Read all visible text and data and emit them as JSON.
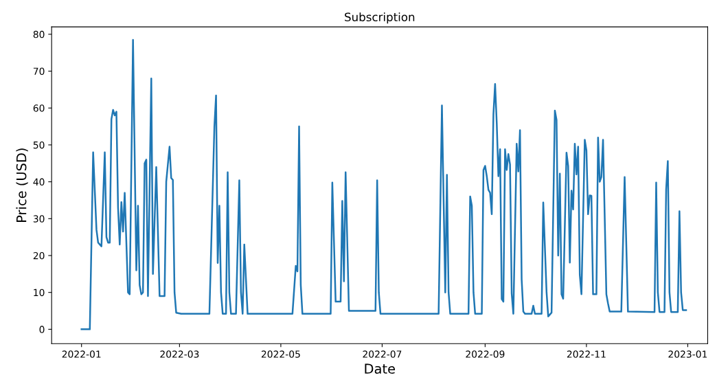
{
  "chart_data": {
    "type": "line",
    "title": "Subscription",
    "xlabel": "Date",
    "ylabel": "Price (USD)",
    "x": [
      "2022-01-01",
      "2022-01-06",
      "2022-01-08",
      "2022-01-10",
      "2022-01-11",
      "2022-01-13",
      "2022-01-15",
      "2022-01-16",
      "2022-01-17",
      "2022-01-18",
      "2022-01-19",
      "2022-01-20",
      "2022-01-21",
      "2022-01-22",
      "2022-01-23",
      "2022-01-24",
      "2022-01-25",
      "2022-01-26",
      "2022-01-27",
      "2022-01-29",
      "2022-01-30",
      "2022-02-01",
      "2022-02-03",
      "2022-02-04",
      "2022-02-05",
      "2022-02-06",
      "2022-02-07",
      "2022-02-08",
      "2022-02-09",
      "2022-02-10",
      "2022-02-12",
      "2022-02-13",
      "2022-02-15",
      "2022-02-17",
      "2022-02-20",
      "2022-02-21",
      "2022-02-23",
      "2022-02-24",
      "2022-02-25",
      "2022-02-26",
      "2022-02-27",
      "2022-03-02",
      "2022-03-19",
      "2022-03-22",
      "2022-03-23",
      "2022-03-24",
      "2022-03-25",
      "2022-03-26",
      "2022-03-27",
      "2022-03-29",
      "2022-03-30",
      "2022-03-31",
      "2022-04-01",
      "2022-04-04",
      "2022-04-06",
      "2022-04-07",
      "2022-04-08",
      "2022-04-09",
      "2022-04-11",
      "2022-05-08",
      "2022-05-10",
      "2022-05-11",
      "2022-05-12",
      "2022-05-13",
      "2022-05-14",
      "2022-05-31",
      "2022-06-01",
      "2022-06-03",
      "2022-06-06",
      "2022-06-07",
      "2022-06-08",
      "2022-06-09",
      "2022-06-11",
      "2022-06-27",
      "2022-06-28",
      "2022-06-29",
      "2022-06-30",
      "2022-08-04",
      "2022-08-06",
      "2022-08-08",
      "2022-08-09",
      "2022-08-10",
      "2022-08-11",
      "2022-08-22",
      "2022-08-23",
      "2022-08-24",
      "2022-08-25",
      "2022-08-26",
      "2022-08-30",
      "2022-08-31",
      "2022-09-01",
      "2022-09-02",
      "2022-09-03",
      "2022-09-04",
      "2022-09-05",
      "2022-09-06",
      "2022-09-07",
      "2022-09-08",
      "2022-09-09",
      "2022-09-10",
      "2022-09-11",
      "2022-09-12",
      "2022-09-13",
      "2022-09-14",
      "2022-09-15",
      "2022-09-16",
      "2022-09-17",
      "2022-09-18",
      "2022-09-20",
      "2022-09-21",
      "2022-09-22",
      "2022-09-23",
      "2022-09-24",
      "2022-09-25",
      "2022-09-29",
      "2022-09-30",
      "2022-10-01",
      "2022-10-05",
      "2022-10-06",
      "2022-10-08",
      "2022-10-09",
      "2022-10-11",
      "2022-10-13",
      "2022-10-14",
      "2022-10-15",
      "2022-10-16",
      "2022-10-17",
      "2022-10-18",
      "2022-10-20",
      "2022-10-21",
      "2022-10-22",
      "2022-10-23",
      "2022-10-24",
      "2022-10-25",
      "2022-10-26",
      "2022-10-27",
      "2022-10-28",
      "2022-10-29",
      "2022-10-31",
      "2022-11-01",
      "2022-11-02",
      "2022-11-03",
      "2022-11-04",
      "2022-11-05",
      "2022-11-07",
      "2022-11-08",
      "2022-11-09",
      "2022-11-10",
      "2022-11-11",
      "2022-11-13",
      "2022-11-14",
      "2022-11-15",
      "2022-11-22",
      "2022-11-24",
      "2022-11-26",
      "2022-12-12",
      "2022-12-13",
      "2022-12-14",
      "2022-12-15",
      "2022-12-18",
      "2022-12-19",
      "2022-12-20",
      "2022-12-21",
      "2022-12-22",
      "2022-12-26",
      "2022-12-27",
      "2022-12-28",
      "2022-12-29",
      "2022-12-31"
    ],
    "series": [
      {
        "color": "#1f77b4",
        "values": [
          0,
          0,
          48,
          27,
          23.5,
          22.5,
          48,
          25,
          23.5,
          23.5,
          57,
          59.5,
          58,
          59,
          33,
          23,
          34.5,
          26.5,
          37,
          10,
          9.5,
          78.5,
          16,
          33.5,
          12,
          9.5,
          10,
          45,
          46,
          9,
          68,
          15,
          44,
          9,
          9,
          40,
          49.5,
          41,
          40.5,
          10,
          4.5,
          4.2,
          4.2,
          55,
          63.4,
          18,
          33.5,
          10,
          4.2,
          4.2,
          42.6,
          10,
          4.2,
          4.2,
          40.4,
          10,
          4.2,
          23,
          4.2,
          4.2,
          17.2,
          15.7,
          55,
          12,
          4.2,
          4.2,
          39.8,
          7.5,
          7.5,
          34.8,
          13,
          42.6,
          5,
          5,
          40.4,
          10,
          4.2,
          4.2,
          60.7,
          10,
          41.9,
          10,
          4.2,
          4.2,
          36,
          33.5,
          10,
          4.2,
          4.2,
          43.2,
          44.3,
          41.5,
          37.8,
          37,
          31.2,
          58.3,
          66.5,
          55.9,
          41.5,
          48.8,
          8.2,
          7.5,
          48.8,
          43.2,
          47.5,
          44.7,
          9.7,
          4.2,
          50.3,
          42.8,
          54,
          13.5,
          4.8,
          4.2,
          4.2,
          6.4,
          4.2,
          4.2,
          34.4,
          10,
          3.5,
          4.5,
          59.3,
          56.8,
          20,
          42.2,
          9.5,
          8.3,
          47.9,
          44.3,
          18.1,
          37.6,
          32.5,
          50.3,
          42,
          49.5,
          14.8,
          9.5,
          51.4,
          48.5,
          31.2,
          36.3,
          36.2,
          9.5,
          9.5,
          52,
          40,
          41.3,
          51.4,
          9.5,
          7,
          4.8,
          4.8,
          41.3,
          4.8,
          4.7,
          39.8,
          10,
          4.7,
          4.7,
          38,
          45.6,
          10,
          4.7,
          4.7,
          32,
          10,
          5.2,
          5.2
        ]
      }
    ],
    "xlim": [
      "2021-12-14",
      "2023-01-13"
    ],
    "xticks": [
      {
        "value": "2022-01-01",
        "label": "2022-01"
      },
      {
        "value": "2022-03-01",
        "label": "2022-03"
      },
      {
        "value": "2022-05-01",
        "label": "2022-05"
      },
      {
        "value": "2022-07-01",
        "label": "2022-07"
      },
      {
        "value": "2022-09-01",
        "label": "2022-09"
      },
      {
        "value": "2022-11-01",
        "label": "2022-11"
      },
      {
        "value": "2023-01-01",
        "label": "2023-01"
      }
    ],
    "ylim": [
      -3.9,
      82.0
    ],
    "yticks": [
      0,
      10,
      20,
      30,
      40,
      50,
      60,
      70,
      80
    ],
    "grid": false
  }
}
